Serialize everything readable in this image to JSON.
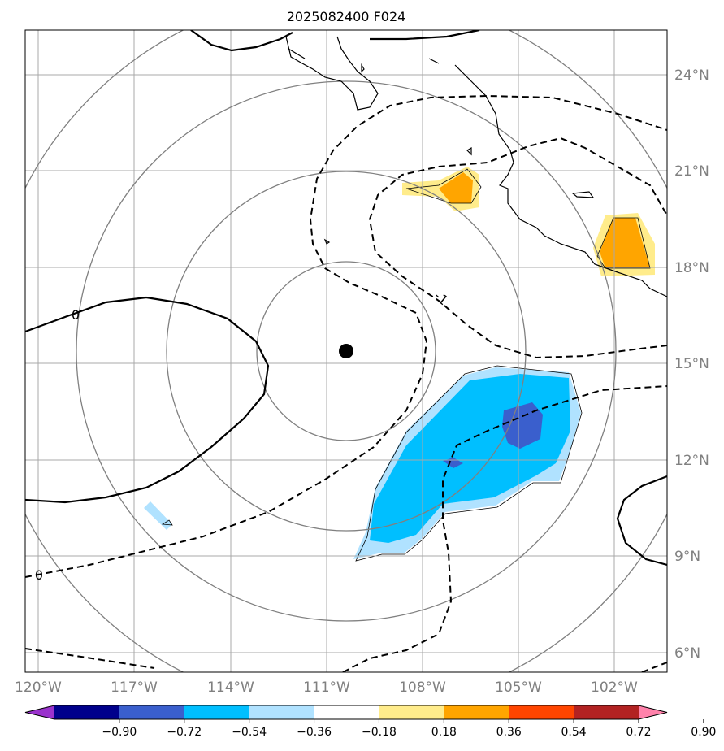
{
  "title": "2025082400 F024",
  "lon_labels": [
    "120°W",
    "117°W",
    "114°W",
    "111°W",
    "108°W",
    "105°W",
    "102°W"
  ],
  "lat_labels": [
    "24°N",
    "21°N",
    "18°N",
    "15°N",
    "12°N",
    "9°N",
    "6°N"
  ],
  "contour_labels": {
    "zero_left": "0",
    "zero_bottom": "0",
    "minus_one": "-1"
  },
  "colorbar": {
    "ticks": [
      "−0.90",
      "−0.72",
      "−0.54",
      "−0.36",
      "−0.18",
      "0.18",
      "0.36",
      "0.54",
      "0.72",
      "0.90"
    ],
    "colors": [
      "#9a32cd",
      "#00008b",
      "#3a5fcd",
      "#00bfff",
      "#b0e2ff",
      "#ffffff",
      "#ffec8b",
      "#ffa500",
      "#ff4500",
      "#b22222",
      "#ff82ab"
    ]
  },
  "storm_center": {
    "lat": 15.4,
    "lon": "110.4°W"
  }
}
